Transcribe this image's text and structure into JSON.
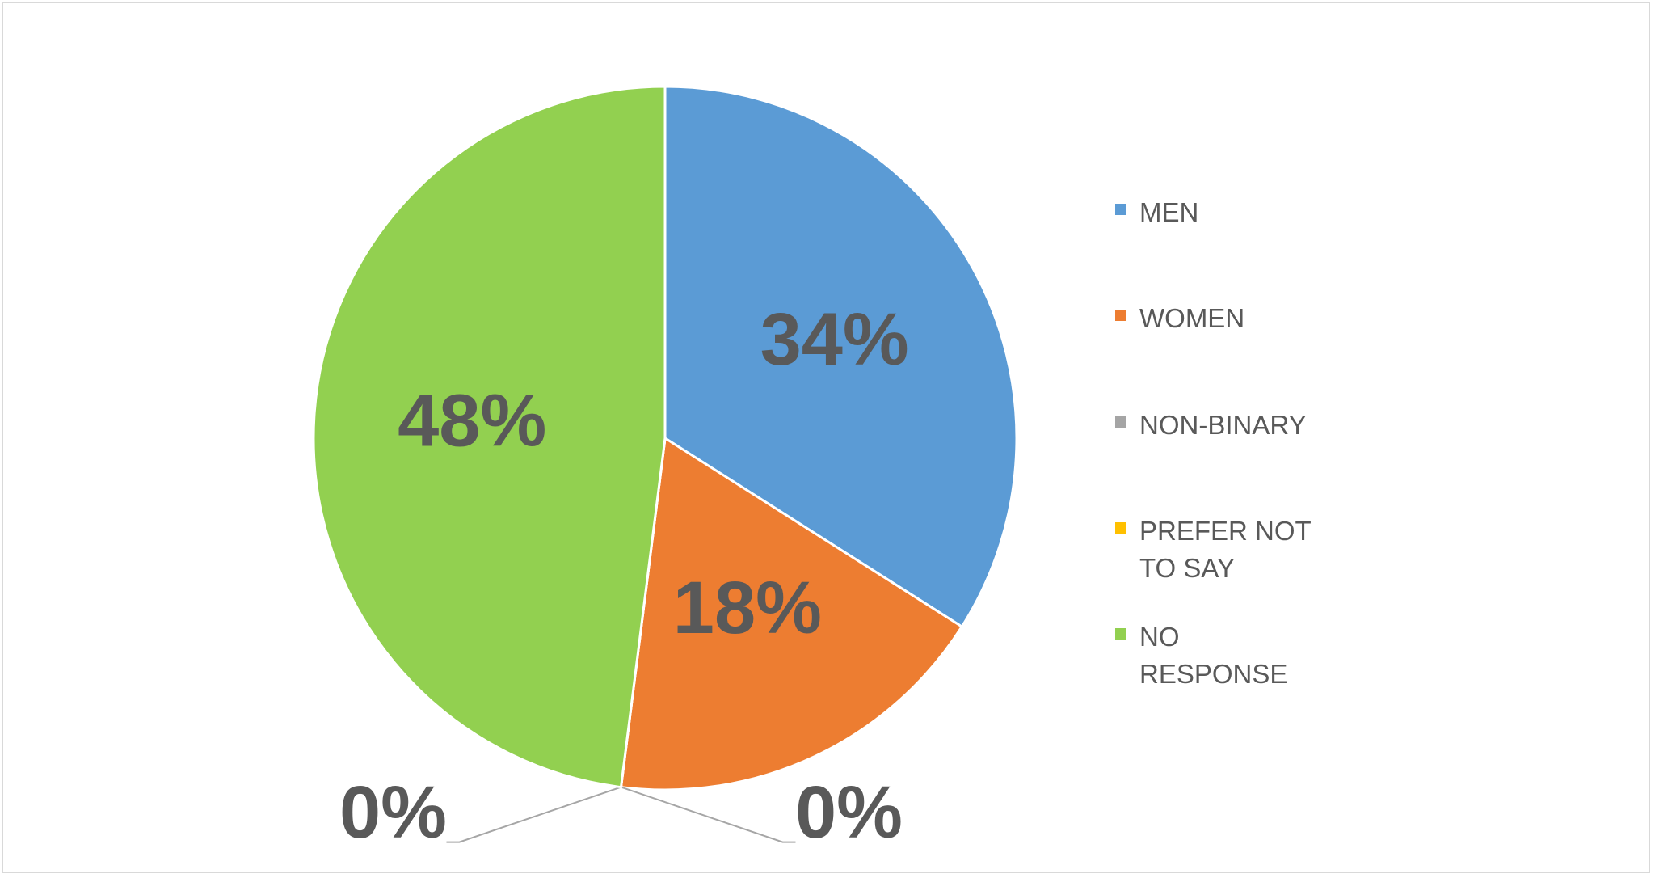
{
  "chart_data": {
    "type": "pie",
    "categories": [
      "MEN",
      "WOMEN",
      "NON-BINARY",
      "PREFER NOT TO SAY",
      "NO RESPONSE"
    ],
    "values": [
      34,
      18,
      0,
      0,
      48
    ],
    "value_labels": [
      "34%",
      "18%",
      "0%",
      "0%",
      "48%"
    ],
    "colors": [
      "#5b9bd5",
      "#ed7d31",
      "#a5a5a5",
      "#ffc000",
      "#92d050"
    ],
    "legend": "right"
  }
}
